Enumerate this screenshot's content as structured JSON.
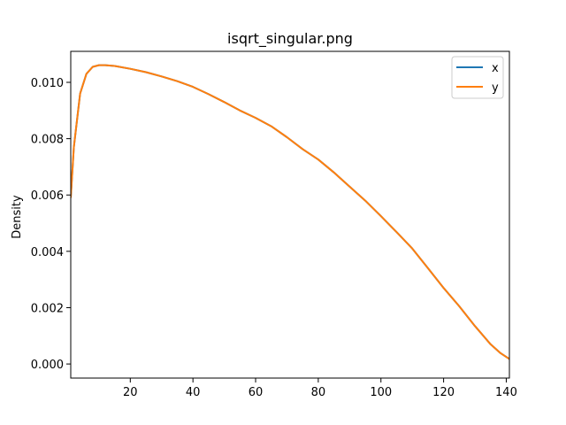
{
  "chart_data": {
    "type": "line",
    "title": "isqrt_singular.png",
    "xlabel": "",
    "ylabel": "Density",
    "xlim": [
      1,
      141
    ],
    "ylim": [
      -0.0005,
      0.0111
    ],
    "xticks": [
      20,
      40,
      60,
      80,
      100,
      120,
      140
    ],
    "yticks": [
      0.0,
      0.002,
      0.004,
      0.006,
      0.008,
      0.01
    ],
    "ytick_labels": [
      "0.000",
      "0.002",
      "0.004",
      "0.006",
      "0.008",
      "0.010"
    ],
    "grid": false,
    "legend_position": "top-right",
    "series": [
      {
        "name": "x",
        "color": "#1f77b4",
        "x": [
          1,
          2,
          4,
          6,
          8,
          10,
          12,
          15,
          20,
          25,
          30,
          35,
          40,
          45,
          50,
          55,
          60,
          65,
          70,
          75,
          80,
          85,
          90,
          95,
          100,
          105,
          110,
          115,
          120,
          125,
          130,
          135,
          138,
          141
        ],
        "y": [
          0.0059,
          0.0077,
          0.0096,
          0.0103,
          0.01055,
          0.01061,
          0.01061,
          0.01058,
          0.01048,
          0.01036,
          0.01021,
          0.01004,
          0.00984,
          0.00958,
          0.0093,
          0.009,
          0.00874,
          0.00844,
          0.00805,
          0.00763,
          0.00726,
          0.0068,
          0.0063,
          0.0058,
          0.00525,
          0.00468,
          0.0041,
          0.0034,
          0.0027,
          0.00205,
          0.00135,
          0.0007,
          0.0004,
          0.00018
        ]
      },
      {
        "name": "y",
        "color": "#ff7f0e",
        "x": [
          1,
          2,
          4,
          6,
          8,
          10,
          12,
          15,
          20,
          25,
          30,
          35,
          40,
          45,
          50,
          55,
          60,
          65,
          70,
          75,
          80,
          85,
          90,
          95,
          100,
          105,
          110,
          115,
          120,
          125,
          130,
          135,
          138,
          141
        ],
        "y": [
          0.0059,
          0.0077,
          0.0096,
          0.0103,
          0.01055,
          0.01061,
          0.01061,
          0.01058,
          0.01048,
          0.01036,
          0.01021,
          0.01004,
          0.00984,
          0.00958,
          0.0093,
          0.009,
          0.00874,
          0.00844,
          0.00805,
          0.00763,
          0.00726,
          0.0068,
          0.0063,
          0.0058,
          0.00525,
          0.00468,
          0.0041,
          0.0034,
          0.0027,
          0.00205,
          0.00135,
          0.0007,
          0.0004,
          0.00018
        ]
      }
    ]
  }
}
